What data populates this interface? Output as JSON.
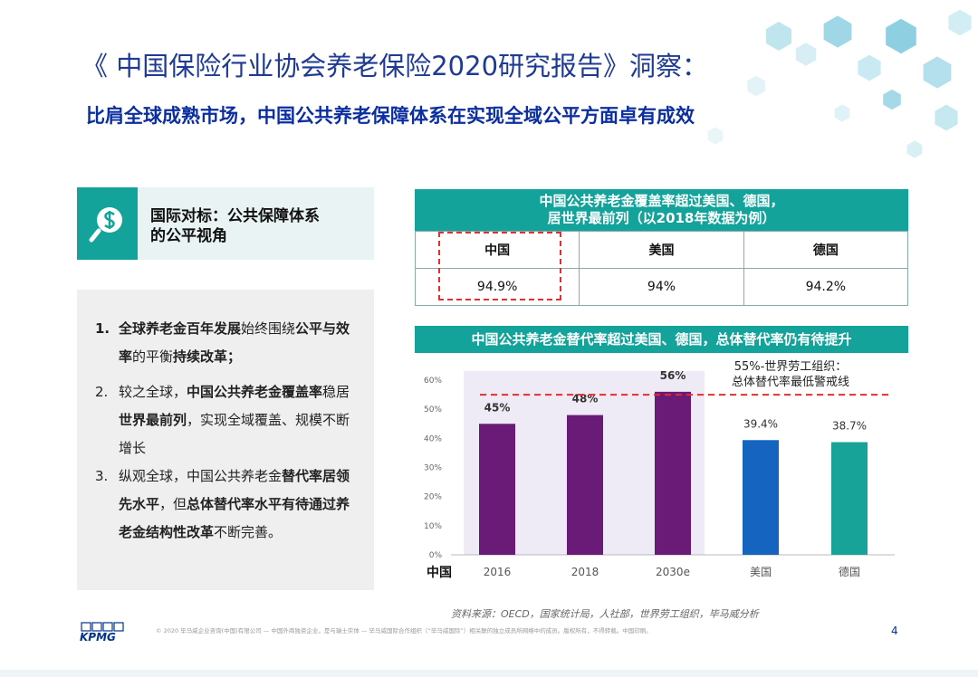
{
  "header": {
    "title": "《 中国保险行业协会养老保险2020研究报告》洞察：",
    "subtitle": "比肩全球成熟市场，中国公共养老保障体系在实现全域公平方面卓有成效"
  },
  "panel": {
    "heading": [
      "国际对标：公共保障体系",
      "的公平视角"
    ],
    "items": [
      {
        "number": "1.",
        "segments": [
          {
            "text": "全球养老金百年发展",
            "bold": true
          },
          {
            "text": "始终围绕",
            "bold": false
          },
          {
            "text": "公平与效率",
            "bold": true
          },
          {
            "text": "的平衡",
            "bold": false
          },
          {
            "text": "持续改革；",
            "bold": true
          }
        ]
      },
      {
        "number": "2.",
        "segments": [
          {
            "text": "较之全球，",
            "bold": false
          },
          {
            "text": "中国公共养老金覆盖率",
            "bold": true
          },
          {
            "text": "稳居",
            "bold": false
          },
          {
            "text": "世界最前列",
            "bold": true
          },
          {
            "text": "，实现全域覆盖、规模不断增长",
            "bold": false
          }
        ]
      },
      {
        "number": "3.",
        "segments": [
          {
            "text": "纵观全球，中国公共养老金",
            "bold": false
          },
          {
            "text": "替代率居领先水平",
            "bold": true
          },
          {
            "text": "，但",
            "bold": false
          },
          {
            "text": "总体替代率水平有待通过养老金结构性改革",
            "bold": true
          },
          {
            "text": "不断完善。",
            "bold": false
          }
        ]
      }
    ]
  },
  "table": {
    "title": [
      "中国公共养老金覆盖率超过美国、德国，",
      "居世界最前列（以2018年数据为例）"
    ],
    "columns": [
      "中国",
      "美国",
      "德国"
    ],
    "rows": [
      [
        "94.9%",
        "94%",
        "94.2%"
      ]
    ]
  },
  "chart_data": {
    "type": "bar",
    "title": "中国公共养老金替代率超过美国、德国，总体替代率仍有待提升",
    "categories": [
      "2016",
      "2018",
      "2030e",
      "美国",
      "德国"
    ],
    "group_label": "中国",
    "values": [
      45,
      48,
      56,
      39.4,
      38.7
    ],
    "value_labels": [
      "45%",
      "48%",
      "56%",
      "39.4%",
      "38.7%"
    ],
    "colors": [
      "#6a1b78",
      "#6a1b78",
      "#6a1b78",
      "#1565c0",
      "#17a398"
    ],
    "ylim": [
      0,
      60
    ],
    "yticks": [
      {
        "value": 0,
        "label": "0%"
      },
      {
        "value": 10,
        "label": "10%"
      },
      {
        "value": 20,
        "label": "20%"
      },
      {
        "value": 30,
        "label": "30%"
      },
      {
        "value": 40,
        "label": "40%"
      },
      {
        "value": 50,
        "label": "50%"
      },
      {
        "value": 60,
        "label": "60%"
      }
    ],
    "reference_line": {
      "value": 55,
      "label": [
        "55%-世界劳工组织：",
        "总体替代率最低警戒线"
      ]
    }
  },
  "footer": {
    "source": "资料来源：OECD，国家统计局，人社部，世界劳工组织，毕马威分析",
    "copyright": "© 2020 毕马威企业咨询(中国)有限公司 — 中国外商独资企业，是与瑞士实体 — 毕马威国际合作组织（“毕马威国际”）相关联的独立成员所网络中的成员。版权所有，不得转载。中国印刷。",
    "logo": "KPMG",
    "page": "4"
  }
}
